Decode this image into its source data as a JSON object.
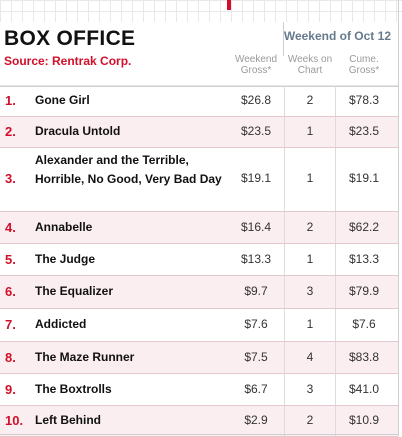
{
  "header": {
    "title": "BOX OFFICE",
    "source": "Source: Rentrak Corp.",
    "week": "Weekend of Oct 12",
    "columns": {
      "gross": [
        "Weekend",
        "Gross*"
      ],
      "weeks": [
        "Weeks on",
        "Chart"
      ],
      "cume": [
        "Cume.",
        "Gross*"
      ]
    }
  },
  "colors": {
    "accent_red": "#d0102a",
    "row_alt": "#fbeef0",
    "week_label": "#667a8c"
  },
  "rows": [
    {
      "rank": "1.",
      "movie": "Gone Girl",
      "gross": "$26.8",
      "weeks": "2",
      "cume": "$78.3"
    },
    {
      "rank": "2.",
      "movie": "Dracula Untold",
      "gross": "$23.5",
      "weeks": "1",
      "cume": "$23.5"
    },
    {
      "rank": "3.",
      "movie": "Alexander and the Terrible, Horrible, No Good, Very Bad Day",
      "gross": "$19.1",
      "weeks": "1",
      "cume": "$19.1"
    },
    {
      "rank": "4.",
      "movie": "Annabelle",
      "gross": "$16.4",
      "weeks": "2",
      "cume": "$62.2"
    },
    {
      "rank": "5.",
      "movie": "The Judge",
      "gross": "$13.3",
      "weeks": "1",
      "cume": "$13.3"
    },
    {
      "rank": "6.",
      "movie": "The Equalizer",
      "gross": "$9.7",
      "weeks": "3",
      "cume": "$79.9"
    },
    {
      "rank": "7.",
      "movie": "Addicted",
      "gross": "$7.6",
      "weeks": "1",
      "cume": "$7.6"
    },
    {
      "rank": "8.",
      "movie": "The Maze Runner",
      "gross": "$7.5",
      "weeks": "4",
      "cume": "$83.8"
    },
    {
      "rank": "9.",
      "movie": "The Boxtrolls",
      "gross": "$6.7",
      "weeks": "3",
      "cume": "$41.0"
    },
    {
      "rank": "10.",
      "movie": "Left Behind",
      "gross": "$2.9",
      "weeks": "2",
      "cume": "$10.9"
    }
  ]
}
